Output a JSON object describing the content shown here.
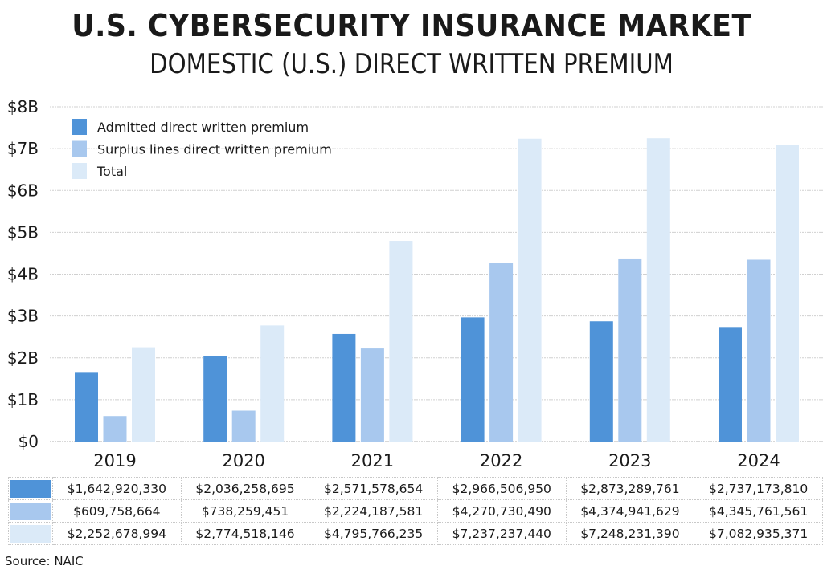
{
  "title": "U.S. CYBERSECURITY INSURANCE MARKET",
  "subtitle": "DOMESTIC (U.S.) DIRECT WRITTEN PREMIUM",
  "source": "Source: NAIC",
  "colors": {
    "admitted": "#4f93d8",
    "surplus": "#a8c8ee",
    "total": "#dbeaf8",
    "grid": "#d0d0d0"
  },
  "chart_data": {
    "type": "bar",
    "title": "U.S. CYBERSECURITY INSURANCE MARKET",
    "subtitle": "DOMESTIC (U.S.) DIRECT WRITTEN PREMIUM",
    "xlabel": "",
    "ylabel": "",
    "categories": [
      "2019",
      "2020",
      "2021",
      "2022",
      "2023",
      "2024"
    ],
    "series": [
      {
        "name": "Admitted direct written premium",
        "color": "#4f93d8",
        "values": [
          1642920330,
          2036258695,
          2571578654,
          2966506950,
          2873289761,
          2737173810
        ],
        "labels": [
          "$1,642,920,330",
          "$2,036,258,695",
          "$2,571,578,654",
          "$2,966,506,950",
          "$2,873,289,761",
          "$2,737,173,810"
        ]
      },
      {
        "name": "Surplus lines direct written premium",
        "color": "#a8c8ee",
        "values": [
          609758664,
          738259451,
          2224187581,
          4270730490,
          4374941629,
          4345761561
        ],
        "labels": [
          "$609,758,664",
          "$738,259,451",
          "$2,224,187,581",
          "$4,270,730,490",
          "$4,374,941,629",
          "$4,345,761,561"
        ]
      },
      {
        "name": "Total",
        "color": "#dbeaf8",
        "values": [
          2252678994,
          2774518146,
          4795766235,
          7237237440,
          7248231390,
          7082935371
        ],
        "labels": [
          "$2,252,678,994",
          "$2,774,518,146",
          "$4,795,766,235",
          "$7,237,237,440",
          "$7,248,231,390",
          "$7,082,935,371"
        ]
      }
    ],
    "ylim": [
      0,
      8000000000
    ],
    "yticks": [
      0,
      1000000000,
      2000000000,
      3000000000,
      4000000000,
      5000000000,
      6000000000,
      7000000000,
      8000000000
    ],
    "ytick_labels": [
      "$0",
      "$1B",
      "$2B",
      "$3B",
      "$4B",
      "$5B",
      "$6B",
      "$7B",
      "$8B"
    ],
    "grid": true,
    "legend_position": "top-left",
    "data_table": true
  }
}
